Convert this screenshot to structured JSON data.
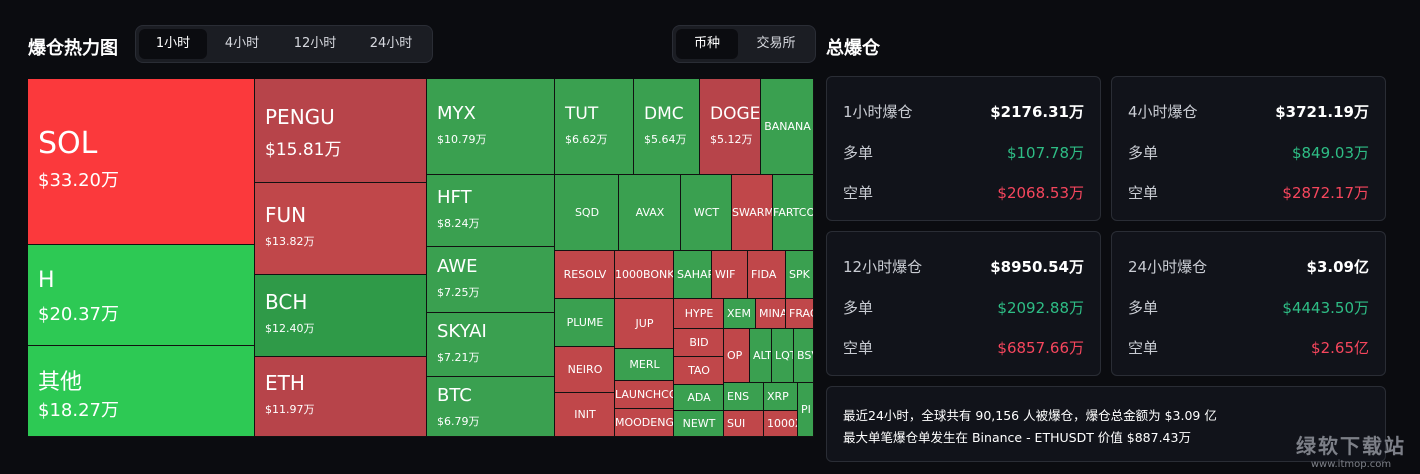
{
  "heatmap": {
    "title": "爆仓热力图",
    "time_tabs": [
      "1小时",
      "4小时",
      "12小时",
      "24小时"
    ],
    "active_time_tab": "1小时",
    "group_tabs": [
      "币种",
      "交易所"
    ],
    "active_group_tab": "币种"
  },
  "treemap": {
    "items": [
      {
        "name": "SOL",
        "value": "$33.20万"
      },
      {
        "name": "H",
        "value": "$20.37万"
      },
      {
        "name": "其他",
        "value": "$18.27万"
      },
      {
        "name": "PENGU",
        "value": "$15.81万"
      },
      {
        "name": "FUN",
        "value": "$13.82万"
      },
      {
        "name": "BCH",
        "value": "$12.40万"
      },
      {
        "name": "ETH",
        "value": "$11.97万"
      },
      {
        "name": "MYX",
        "value": "$10.79万"
      },
      {
        "name": "HFT",
        "value": "$8.24万"
      },
      {
        "name": "AWE",
        "value": "$7.25万"
      },
      {
        "name": "SKYAI",
        "value": "$7.21万"
      },
      {
        "name": "BTC",
        "value": "$6.79万"
      },
      {
        "name": "TUT",
        "value": "$6.62万"
      },
      {
        "name": "DMC",
        "value": "$5.64万"
      },
      {
        "name": "DOGE",
        "value": "$5.12万"
      },
      {
        "name": "BANANA",
        "value": ""
      },
      {
        "name": "SQD",
        "value": ""
      },
      {
        "name": "AVAX",
        "value": ""
      },
      {
        "name": "WCT",
        "value": ""
      },
      {
        "name": "SWARMS",
        "value": ""
      },
      {
        "name": "FARTCOIN",
        "value": ""
      },
      {
        "name": "RESOLV",
        "value": ""
      },
      {
        "name": "1000BONK",
        "value": ""
      },
      {
        "name": "SAHARA",
        "value": ""
      },
      {
        "name": "WIF",
        "value": ""
      },
      {
        "name": "FIDA",
        "value": ""
      },
      {
        "name": "SPK",
        "value": ""
      },
      {
        "name": "PLUME",
        "value": ""
      },
      {
        "name": "JUP",
        "value": ""
      },
      {
        "name": "HYPE",
        "value": ""
      },
      {
        "name": "XEM",
        "value": ""
      },
      {
        "name": "MINA",
        "value": ""
      },
      {
        "name": "FRAG",
        "value": ""
      },
      {
        "name": "MERL",
        "value": ""
      },
      {
        "name": "BID",
        "value": ""
      },
      {
        "name": "NEIRO",
        "value": ""
      },
      {
        "name": "OP",
        "value": ""
      },
      {
        "name": "ALT",
        "value": ""
      },
      {
        "name": "LQTY",
        "value": ""
      },
      {
        "name": "BSV",
        "value": ""
      },
      {
        "name": "TAO",
        "value": ""
      },
      {
        "name": "LAUNCHCOIN",
        "value": ""
      },
      {
        "name": "ADA",
        "value": ""
      },
      {
        "name": "ENS",
        "value": ""
      },
      {
        "name": "XRP",
        "value": ""
      },
      {
        "name": "PI",
        "value": ""
      },
      {
        "name": "INIT",
        "value": ""
      },
      {
        "name": "MOODENG",
        "value": ""
      },
      {
        "name": "NEWT",
        "value": ""
      },
      {
        "name": "SUI",
        "value": ""
      },
      {
        "name": "1000X",
        "value": ""
      }
    ]
  },
  "totals": {
    "title": "总爆仓",
    "long_label": "多单",
    "short_label": "空单",
    "cards": [
      {
        "label": "1小时爆仓",
        "total": "$2176.31万",
        "long": "$107.78万",
        "short": "$2068.53万"
      },
      {
        "label": "4小时爆仓",
        "total": "$3721.19万",
        "long": "$849.03万",
        "short": "$2872.17万"
      },
      {
        "label": "12小时爆仓",
        "total": "$8950.54万",
        "long": "$2092.88万",
        "short": "$6857.66万"
      },
      {
        "label": "24小时爆仓",
        "total": "$3.09亿",
        "long": "$4443.50万",
        "short": "$2.65亿"
      }
    ],
    "summary_line1": "最近24小时，全球共有 90,156 人被爆仓，爆仓总金额为 $3.09 亿",
    "summary_line2": "最大单笔爆仓单发生在 Binance - ETHUSDT 价值 $887.43万"
  },
  "watermark": {
    "text": "绿软下载站",
    "url": "www.itmop.com"
  },
  "colors": {
    "long": "#2ebd85",
    "short": "#f6465d",
    "bright_red": "#fb393c",
    "bright_green": "#2dc954"
  }
}
